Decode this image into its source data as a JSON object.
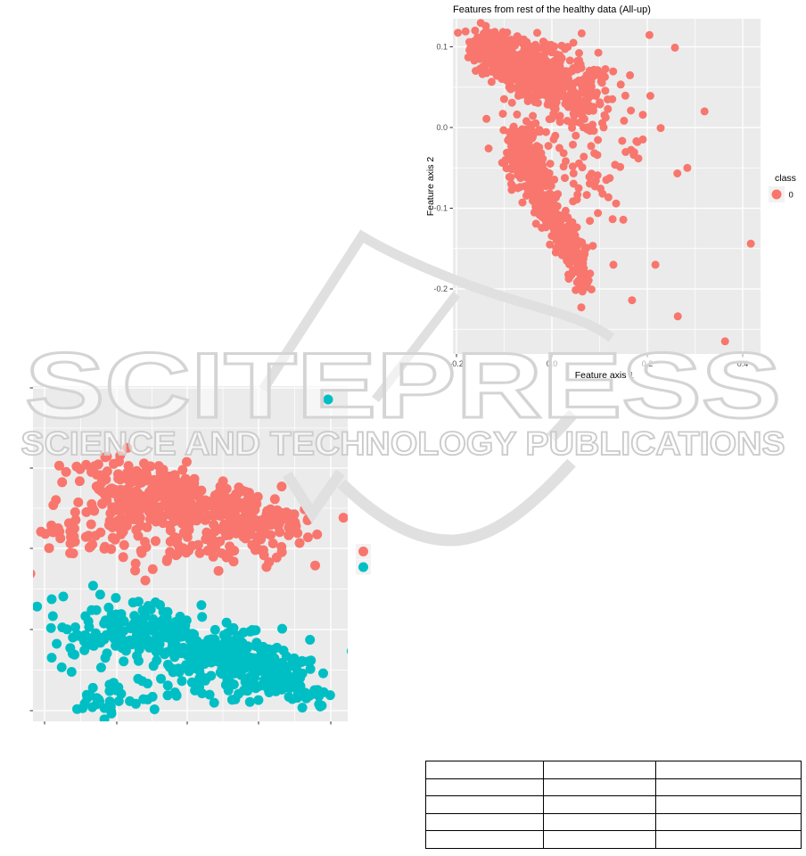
{
  "watermark": {
    "brand": "SCITEPRESS",
    "subtitle": "SCIENCE AND TECHNOLOGY PUBLICATIONS",
    "outline_color": "#d4d4d4",
    "logo_color": "#e0e0e0"
  },
  "chart_data": [
    {
      "id": "healthy-features",
      "type": "scatter",
      "title": "Features from rest of the healthy data (All-up)",
      "xlabel": "Feature axis 1",
      "ylabel": "Feature axis 2",
      "xlim": [
        -0.207,
        0.437
      ],
      "ylim": [
        -0.281,
        0.135
      ],
      "xticks": [
        -0.2,
        0.0,
        0.2,
        0.4
      ],
      "xtick_labels": [
        "-0.2",
        "0.0",
        "0.2",
        "0.4"
      ],
      "yticks": [
        0.1,
        0.0,
        -0.1,
        -0.2
      ],
      "ytick_labels": [
        "0.1",
        "0.0",
        "-0.1",
        "-0.2"
      ],
      "grid": true,
      "panel_bg": "#EBEBEB",
      "grid_color": "#FFFFFF",
      "legend": {
        "position": "right",
        "title": "class",
        "items": [
          {
            "label": "0",
            "color": "#F8766D"
          }
        ]
      },
      "series": [
        {
          "name": "0",
          "color": "#F8766D",
          "radius": 4.5,
          "units": "data",
          "clusters": [
            {
              "kind": "gauss",
              "n": 220,
              "cx": -0.118,
              "cy": 0.09,
              "sx": 0.026,
              "sy": 0.015,
              "tilt": -0.25
            },
            {
              "kind": "gauss",
              "n": 260,
              "cx": -0.058,
              "cy": 0.075,
              "sx": 0.034,
              "sy": 0.019,
              "tilt": -0.2
            },
            {
              "kind": "gauss",
              "n": 220,
              "cx": -0.003,
              "cy": 0.057,
              "sx": 0.038,
              "sy": 0.019,
              "tilt": -0.15
            },
            {
              "kind": "gauss",
              "n": 90,
              "cx": 0.058,
              "cy": 0.051,
              "sx": 0.03,
              "sy": 0.024
            },
            {
              "kind": "gauss",
              "n": 120,
              "cx": -0.052,
              "cy": -0.033,
              "sx": 0.028,
              "sy": 0.022
            },
            {
              "kind": "curve",
              "n": 420,
              "x0": -0.075,
              "dx": 0.148,
              "xpow": 1.15,
              "y0": -0.012,
              "dy": -0.178,
              "w0": 0.019,
              "w1": 0.007,
              "h": 0.013
            },
            {
              "kind": "gauss",
              "n": 55,
              "cx": 0.07,
              "cy": -0.05,
              "sx": 0.045,
              "sy": 0.055
            },
            {
              "kind": "gauss",
              "n": 25,
              "cx": 0.16,
              "cy": 0.01,
              "sx": 0.05,
              "sy": 0.05
            }
          ],
          "outliers": [
            [
              -0.181,
              0.119
            ],
            [
              0.045,
              0.105
            ],
            [
              0.258,
              0.099
            ],
            [
              0.32,
              0.02
            ],
            [
              0.284,
              -0.05
            ],
            [
              0.417,
              -0.144
            ],
            [
              0.217,
              -0.17
            ],
            [
              0.168,
              -0.214
            ],
            [
              0.264,
              -0.234
            ],
            [
              0.363,
              -0.265
            ],
            [
              0.129,
              -0.17
            ]
          ]
        }
      ]
    },
    {
      "id": "two-class-features",
      "type": "scatter",
      "title": "",
      "xlabel": "",
      "ylabel": "",
      "axes_labeled": false,
      "grid": true,
      "panel_bg": "#EBEBEB",
      "grid_color": "#FFFFFF",
      "xticks": [
        13,
        94,
        173,
        253,
        334
      ],
      "xtick_labels": [],
      "yticks": [
        2,
        92,
        182,
        273,
        364
      ],
      "ytick_labels": [],
      "legend": {
        "position": "right",
        "title": "",
        "items": [
          {
            "label": "",
            "color": "#F8766D"
          },
          {
            "label": "",
            "color": "#00BFC4"
          }
        ]
      },
      "series": [
        {
          "name": "class-red",
          "color": "#F8766D",
          "radius": 5.5,
          "units": "panel-px",
          "clusters": [
            {
              "kind": "gauss",
              "n": 170,
              "cx": 113,
              "cy": 122,
              "sx": 38,
              "sy": 18,
              "tilt": 0.1
            },
            {
              "kind": "gauss",
              "n": 200,
              "cx": 198,
              "cy": 139,
              "sx": 45,
              "sy": 16,
              "tilt": 0.12
            },
            {
              "kind": "gauss",
              "n": 70,
              "cx": 253,
              "cy": 152,
              "sx": 24,
              "sy": 12
            },
            {
              "kind": "gauss",
              "n": 45,
              "cx": 61,
              "cy": 164,
              "sx": 26,
              "sy": 18
            },
            {
              "kind": "gauss",
              "n": 55,
              "cx": 188,
              "cy": 179,
              "sx": 58,
              "sy": 12
            }
          ],
          "outliers": [
            [
              126,
              218
            ],
            [
              83,
              79
            ],
            [
              299,
              176
            ]
          ]
        },
        {
          "name": "class-teal",
          "color": "#00BFC4",
          "radius": 5.5,
          "units": "panel-px",
          "clusters": [
            {
              "kind": "gauss",
              "n": 80,
              "cx": 123,
              "cy": 273,
              "sx": 30,
              "sy": 16
            },
            {
              "kind": "gauss",
              "n": 230,
              "cx": 193,
              "cy": 295,
              "sx": 52,
              "sy": 14,
              "tilt": 0.18
            },
            {
              "kind": "gauss",
              "n": 100,
              "cx": 248,
              "cy": 315,
              "sx": 32,
              "sy": 13
            },
            {
              "kind": "gauss",
              "n": 35,
              "cx": 53,
              "cy": 272,
              "sx": 25,
              "sy": 22
            },
            {
              "kind": "gauss",
              "n": 45,
              "cx": 168,
              "cy": 337,
              "sx": 65,
              "sy": 12
            },
            {
              "kind": "gauss",
              "n": 25,
              "cx": 293,
              "cy": 337,
              "sx": 20,
              "sy": 10
            },
            {
              "kind": "gauss",
              "n": 18,
              "cx": 75,
              "cy": 352,
              "sx": 18,
              "sy": 8
            },
            {
              "kind": "gauss",
              "n": 12,
              "cx": 315,
              "cy": 355,
              "sx": 14,
              "sy": 6
            }
          ],
          "outliers": [
            [
              331,
              15
            ],
            [
              21,
              239
            ],
            [
              58,
              356
            ]
          ]
        }
      ]
    }
  ],
  "table": {
    "columns": 3,
    "rows": 5,
    "cells": [
      [
        "",
        "",
        ""
      ],
      [
        "",
        "",
        ""
      ],
      [
        "",
        "",
        ""
      ],
      [
        "",
        "",
        ""
      ],
      [
        "",
        "",
        ""
      ]
    ]
  }
}
